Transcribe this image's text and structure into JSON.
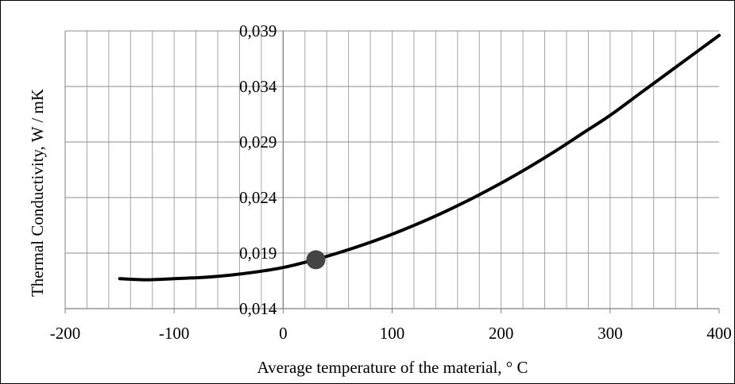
{
  "chart_data": {
    "type": "line",
    "title": "",
    "xlabel": "Average temperature of the material, ° C",
    "ylabel": "Thermal Conductivity, W / mK",
    "xlim": [
      -200,
      400
    ],
    "ylim": [
      0.014,
      0.039
    ],
    "x_ticks": [
      "-200",
      "-100",
      "0",
      "100",
      "200",
      "300",
      "400"
    ],
    "y_ticks": [
      "0,014",
      "0,019",
      "0,024",
      "0,029",
      "0,034",
      "0,039"
    ],
    "grid": true,
    "legend": "none",
    "series": [
      {
        "color": "#000000",
        "x": [
          -150,
          -125,
          -100,
          -75,
          -50,
          -25,
          0,
          25,
          50,
          75,
          100,
          125,
          150,
          175,
          200,
          225,
          250,
          275,
          300,
          325,
          350,
          375,
          400
        ],
        "y": [
          0.0167,
          0.0166,
          0.0167,
          0.0168,
          0.017,
          0.0173,
          0.0177,
          0.0183,
          0.019,
          0.0198,
          0.0207,
          0.0217,
          0.0228,
          0.024,
          0.0253,
          0.0267,
          0.0282,
          0.0298,
          0.0314,
          0.0332,
          0.035,
          0.0368,
          0.0386
        ]
      }
    ],
    "highlight_point": {
      "x": 30,
      "y": 0.0184,
      "color": "#444444"
    }
  }
}
